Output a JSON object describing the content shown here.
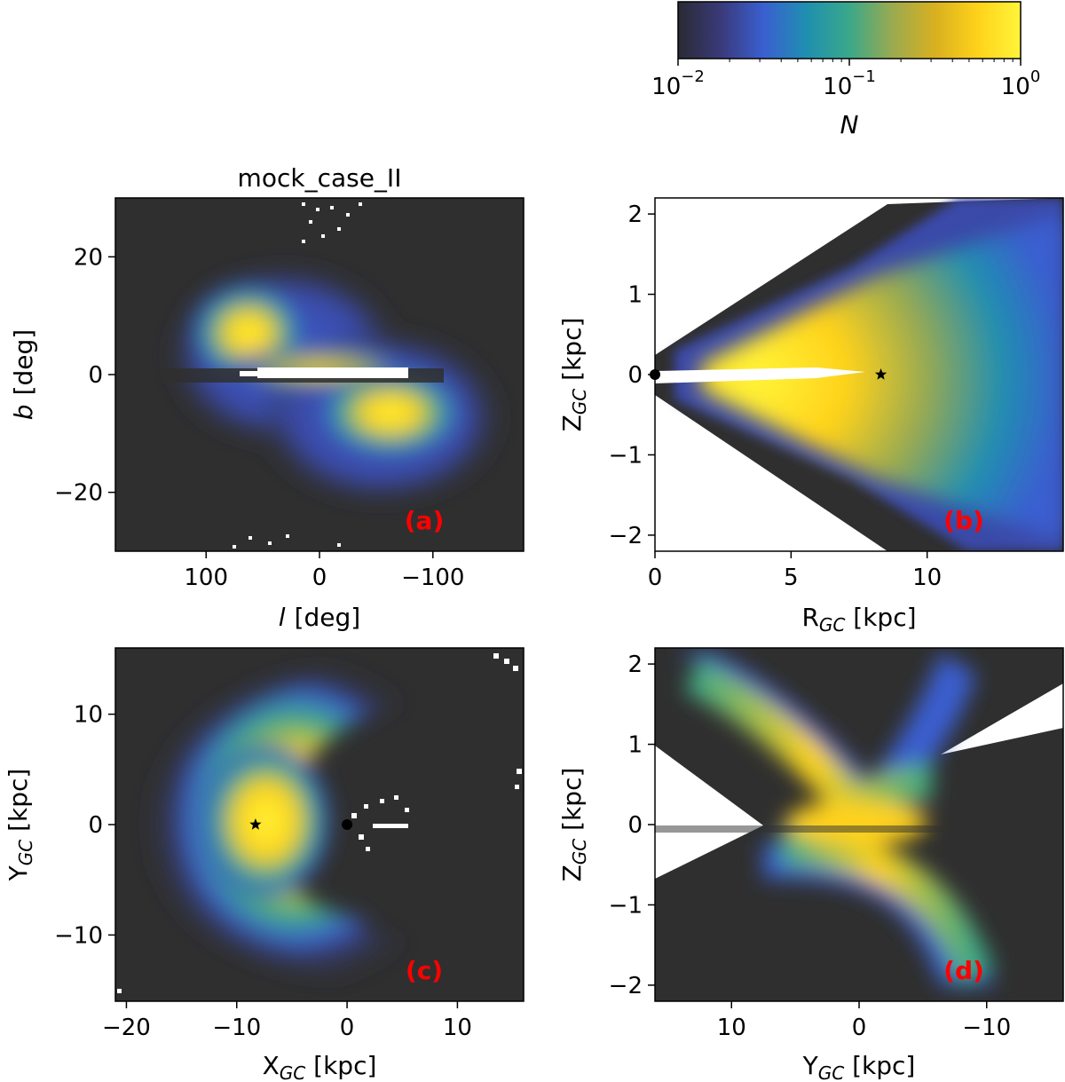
{
  "figure": {
    "title": "mock_case_II",
    "colors": {
      "background_dark": "#2f2f2f",
      "panel_label": "#ff0000",
      "marker": "#000000"
    },
    "colorbar": {
      "label": "N",
      "scale": "log",
      "range": [
        0.01,
        1
      ],
      "ticks": [
        {
          "value": 0.01,
          "base": "10",
          "exp": "−2"
        },
        {
          "value": 0.1,
          "base": "10",
          "exp": "−1"
        },
        {
          "value": 1,
          "base": "10",
          "exp": "0"
        }
      ],
      "colormap": [
        "#2a2a34",
        "#3a3a7a",
        "#3a5fd0",
        "#1f8fb0",
        "#3aa88a",
        "#9aaa50",
        "#d8b020",
        "#ffd21a",
        "#fff53a"
      ]
    }
  },
  "chart_data": [
    {
      "id": "a",
      "type": "heatmap",
      "panel_label": "(a)",
      "title": "mock_case_II",
      "xlabel_italic": "l",
      "xlabel_unit": "[deg]",
      "ylabel_italic": "b",
      "ylabel_unit": "[deg]",
      "xlim": [
        180,
        -180
      ],
      "ylim": [
        -30,
        30
      ],
      "xticks": [
        {
          "v": 100,
          "t": "100"
        },
        {
          "v": 0,
          "t": "0"
        },
        {
          "v": -100,
          "t": "−100"
        }
      ],
      "yticks": [
        {
          "v": 20,
          "t": "20"
        },
        {
          "v": 0,
          "t": "0"
        },
        {
          "v": -20,
          "t": "−20"
        }
      ]
    },
    {
      "id": "b",
      "type": "heatmap",
      "panel_label": "(b)",
      "xlabel_main": "R",
      "xlabel_sub": "GC",
      "xlabel_unit": " [kpc]",
      "ylabel_main": "Z",
      "ylabel_sub": "GC",
      "ylabel_unit": " [kpc]",
      "xlim": [
        0,
        15
      ],
      "ylim": [
        -2.2,
        2.2
      ],
      "xticks": [
        {
          "v": 0,
          "t": "0"
        },
        {
          "v": 5,
          "t": "5"
        },
        {
          "v": 10,
          "t": "10"
        }
      ],
      "yticks": [
        {
          "v": 2,
          "t": "2"
        },
        {
          "v": 1,
          "t": "1"
        },
        {
          "v": 0,
          "t": "0"
        },
        {
          "v": -1,
          "t": "−1"
        },
        {
          "v": -2,
          "t": "−2"
        }
      ],
      "markers": [
        {
          "kind": "circle",
          "x": 0,
          "y": 0
        },
        {
          "kind": "star",
          "x": 8.3,
          "y": 0
        }
      ]
    },
    {
      "id": "c",
      "type": "heatmap",
      "panel_label": "(c)",
      "xlabel_main": "X",
      "xlabel_sub": "GC",
      "xlabel_unit": " [kpc]",
      "ylabel_main": "Y",
      "ylabel_sub": "GC",
      "ylabel_unit": " [kpc]",
      "xlim": [
        -21,
        16
      ],
      "ylim": [
        -16,
        16
      ],
      "xticks": [
        {
          "v": -20,
          "t": "−20"
        },
        {
          "v": -10,
          "t": "−10"
        },
        {
          "v": 0,
          "t": "0"
        },
        {
          "v": 10,
          "t": "10"
        }
      ],
      "yticks": [
        {
          "v": 10,
          "t": "10"
        },
        {
          "v": 0,
          "t": "0"
        },
        {
          "v": -10,
          "t": "−10"
        }
      ],
      "markers": [
        {
          "kind": "star",
          "x": -8.3,
          "y": 0
        },
        {
          "kind": "circle",
          "x": 0,
          "y": 0
        }
      ]
    },
    {
      "id": "d",
      "type": "heatmap",
      "panel_label": "(d)",
      "xlabel_main": "Y",
      "xlabel_sub": "GC",
      "xlabel_unit": " [kpc]",
      "ylabel_main": "Z",
      "ylabel_sub": "GC",
      "ylabel_unit": " [kpc]",
      "xlim": [
        16,
        -16
      ],
      "ylim": [
        -2.2,
        2.2
      ],
      "xticks": [
        {
          "v": 10,
          "t": "10"
        },
        {
          "v": 0,
          "t": "0"
        },
        {
          "v": -10,
          "t": "−10"
        }
      ],
      "yticks": [
        {
          "v": 2,
          "t": "2"
        },
        {
          "v": 1,
          "t": "1"
        },
        {
          "v": 0,
          "t": "0"
        },
        {
          "v": -1,
          "t": "−1"
        },
        {
          "v": -2,
          "t": "−2"
        }
      ]
    }
  ]
}
